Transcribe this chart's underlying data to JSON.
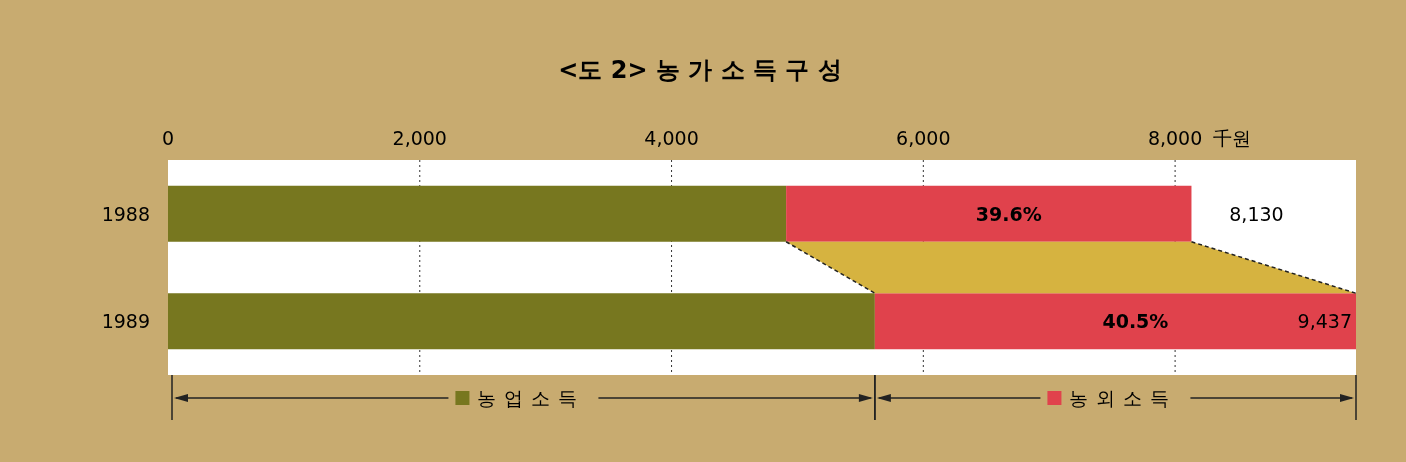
{
  "chart_data": {
    "type": "bar",
    "orientation": "horizontal",
    "stacked": true,
    "title": "<도 2> 농 가 소 득 구 성",
    "xlabel": "千원",
    "categories": [
      "1988",
      "1989"
    ],
    "series": [
      {
        "name": "농업소득",
        "color": "#77771f",
        "values": [
          4910,
          5615
        ]
      },
      {
        "name": "농외소득",
        "color": "#e0424c",
        "values": [
          3220,
          3822
        ]
      }
    ],
    "annotations": [
      "39.6%",
      "40.5%"
    ],
    "totals": [
      "8,130",
      "9,437"
    ],
    "xlim": [
      0,
      9437
    ],
    "xticks": [
      0,
      {
        "value": 2000,
        "label": "2,000"
      },
      {
        "value": 4000,
        "label": "4,000"
      },
      {
        "value": 6000,
        "label": "6,000"
      },
      {
        "value": 8000,
        "label": "8,000"
      }
    ],
    "grid": "x",
    "legend": "bottom"
  }
}
